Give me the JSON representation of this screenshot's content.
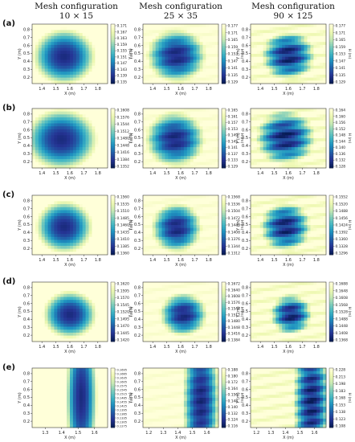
{
  "headers": [
    {
      "title": "Mesh configuration",
      "size": "10 × 15"
    },
    {
      "title": "Mesh configuration",
      "size": "25 × 35"
    },
    {
      "title": "Mesh configuration",
      "size": "90 × 125"
    }
  ],
  "row_labels": [
    "(a)",
    "(b)",
    "(c)",
    "(d)",
    "(e)"
  ],
  "colors": [
    "#081d58",
    "#253494",
    "#225ea8",
    "#1d91c0",
    "#41b6c4",
    "#7fcdbb",
    "#c7e9b4",
    "#edf8b1",
    "#ffffd9"
  ],
  "chart_data": [
    {
      "type": "heatmap",
      "panel": "a-10x15",
      "xlabel": "X (m)",
      "ylabel": "Y (m)",
      "colorbar_label": "H (m)",
      "xticks": [
        "1.4",
        "1.5",
        "1.6",
        "1.7",
        "1.8"
      ],
      "yticks": [
        "0.2",
        "0.3",
        "0.4",
        "0.5",
        "0.6",
        "0.7",
        "0.8"
      ],
      "xlim": [
        1.33,
        1.87
      ],
      "ylim": [
        0.12,
        0.87
      ],
      "cbar_ticks": [
        "0.171",
        "0.167",
        "0.163",
        "0.159",
        "0.155",
        "0.151",
        "0.147",
        "0.143",
        "0.139",
        "0.135"
      ],
      "field": {
        "center": [
          1.56,
          0.46
        ],
        "radius": [
          0.21,
          0.33
        ],
        "bands": 0
      }
    },
    {
      "type": "heatmap",
      "panel": "a-25x35",
      "xlabel": "X (m)",
      "ylabel": "Y (m)",
      "colorbar_label": "H (m)",
      "xticks": [
        "1.4",
        "1.5",
        "1.6",
        "1.7",
        "1.8"
      ],
      "yticks": [
        "0.2",
        "0.3",
        "0.4",
        "0.5",
        "0.6",
        "0.7",
        "0.8"
      ],
      "xlim": [
        1.33,
        1.87
      ],
      "ylim": [
        0.12,
        0.87
      ],
      "cbar_ticks": [
        "0.177",
        "0.171",
        "0.165",
        "0.159",
        "0.153",
        "0.147",
        "0.141",
        "0.135",
        "0.129"
      ],
      "field": {
        "center": [
          1.57,
          0.47
        ],
        "radius": [
          0.2,
          0.32
        ],
        "bands": 0.05
      }
    },
    {
      "type": "heatmap",
      "panel": "a-90x125",
      "xlabel": "X (m)",
      "ylabel": "Y (m)",
      "colorbar_label": "H (m)",
      "xticks": [
        "1.4",
        "1.5",
        "1.6",
        "1.7",
        "1.8"
      ],
      "yticks": [
        "0.2",
        "0.3",
        "0.4",
        "0.5",
        "0.6",
        "0.7",
        "0.8"
      ],
      "xlim": [
        1.33,
        1.87
      ],
      "ylim": [
        0.12,
        0.87
      ],
      "cbar_ticks": [
        "0.177",
        "0.171",
        "0.165",
        "0.159",
        "0.153",
        "0.147",
        "0.141",
        "0.135",
        "0.129"
      ],
      "field": {
        "center": [
          1.6,
          0.47
        ],
        "radius": [
          0.18,
          0.3
        ],
        "bands": 0.12
      }
    },
    {
      "type": "heatmap",
      "panel": "b-10x15",
      "xlabel": "X (m)",
      "ylabel": "Y (m)",
      "colorbar_label": "H (m)",
      "xticks": [
        "1.4",
        "1.5",
        "1.6",
        "1.7",
        "1.8"
      ],
      "yticks": [
        "0.2",
        "0.3",
        "0.4",
        "0.5",
        "0.6",
        "0.7",
        "0.8"
      ],
      "xlim": [
        1.33,
        1.87
      ],
      "ylim": [
        0.12,
        0.87
      ],
      "cbar_ticks": [
        "0.1608",
        "0.1576",
        "0.1544",
        "0.1512",
        "0.1480",
        "0.1448",
        "0.1416",
        "0.1384",
        "0.1352"
      ],
      "field": {
        "center": [
          1.54,
          0.48
        ],
        "radius": [
          0.24,
          0.36
        ],
        "bands": 0
      }
    },
    {
      "type": "heatmap",
      "panel": "b-25x35",
      "xlabel": "X (m)",
      "ylabel": "Y (m)",
      "colorbar_label": "H (m)",
      "xticks": [
        "1.4",
        "1.5",
        "1.6",
        "1.7",
        "1.8"
      ],
      "yticks": [
        "0.2",
        "0.3",
        "0.4",
        "0.5",
        "0.6",
        "0.7",
        "0.8"
      ],
      "xlim": [
        1.33,
        1.87
      ],
      "ylim": [
        0.12,
        0.87
      ],
      "cbar_ticks": [
        "0.165",
        "0.161",
        "0.157",
        "0.153",
        "0.149",
        "0.145",
        "0.141",
        "0.137",
        "0.133",
        "0.129"
      ],
      "field": {
        "center": [
          1.56,
          0.48
        ],
        "radius": [
          0.2,
          0.33
        ],
        "bands": 0.05
      }
    },
    {
      "type": "heatmap",
      "panel": "b-90x125",
      "xlabel": "X (m)",
      "ylabel": "Y (m)",
      "colorbar_label": "H (m)",
      "xticks": [
        "1.4",
        "1.5",
        "1.6",
        "1.7",
        "1.8"
      ],
      "yticks": [
        "0.2",
        "0.3",
        "0.4",
        "0.5",
        "0.6",
        "0.7",
        "0.8"
      ],
      "xlim": [
        1.33,
        1.87
      ],
      "ylim": [
        0.12,
        0.87
      ],
      "cbar_ticks": [
        "0.164",
        "0.160",
        "0.156",
        "0.152",
        "0.148",
        "0.144",
        "0.140",
        "0.136",
        "0.132",
        "0.128"
      ],
      "field": {
        "center": [
          1.58,
          0.5
        ],
        "radius": [
          0.2,
          0.33
        ],
        "bands": 0.12
      }
    },
    {
      "type": "heatmap",
      "panel": "c-10x15",
      "xlabel": "X (m)",
      "ylabel": "Y (m)",
      "colorbar_label": "H (m)",
      "xticks": [
        "1.4",
        "1.5",
        "1.6",
        "1.7",
        "1.8"
      ],
      "yticks": [
        "0.2",
        "0.3",
        "0.4",
        "0.5",
        "0.6",
        "0.7",
        "0.8"
      ],
      "xlim": [
        1.33,
        1.87
      ],
      "ylim": [
        0.12,
        0.87
      ],
      "cbar_ticks": [
        "0.1560",
        "0.1535",
        "0.1510",
        "0.1485",
        "0.1460",
        "0.1435",
        "0.1410",
        "0.1385",
        "0.1360"
      ],
      "field": {
        "center": [
          1.56,
          0.47
        ],
        "radius": [
          0.19,
          0.31
        ],
        "bands": 0
      }
    },
    {
      "type": "heatmap",
      "panel": "c-25x35",
      "xlabel": "X (m)",
      "ylabel": "Y (m)",
      "colorbar_label": "H (m)",
      "xticks": [
        "1.4",
        "1.5",
        "1.6",
        "1.7",
        "1.8"
      ],
      "yticks": [
        "0.2",
        "0.3",
        "0.4",
        "0.5",
        "0.6",
        "0.7",
        "0.8"
      ],
      "xlim": [
        1.33,
        1.87
      ],
      "ylim": [
        0.12,
        0.87
      ],
      "cbar_ticks": [
        "0.1568",
        "0.1536",
        "0.1504",
        "0.1472",
        "0.1440",
        "0.1408",
        "0.1376",
        "0.1344",
        "0.1312"
      ],
      "field": {
        "center": [
          1.57,
          0.46
        ],
        "radius": [
          0.17,
          0.3
        ],
        "bands": 0.05
      }
    },
    {
      "type": "heatmap",
      "panel": "c-90x125",
      "xlabel": "X (m)",
      "ylabel": "Y (m)",
      "colorbar_label": "H (m)",
      "xticks": [
        "1.4",
        "1.5",
        "1.6",
        "1.7",
        "1.8"
      ],
      "yticks": [
        "0.2",
        "0.3",
        "0.4",
        "0.5",
        "0.6",
        "0.7",
        "0.8"
      ],
      "xlim": [
        1.33,
        1.87
      ],
      "ylim": [
        0.12,
        0.87
      ],
      "cbar_ticks": [
        "0.1552",
        "0.1520",
        "0.1488",
        "0.1456",
        "0.1424",
        "0.1392",
        "0.1360",
        "0.1328",
        "0.1296"
      ],
      "field": {
        "center": [
          1.58,
          0.47
        ],
        "radius": [
          0.17,
          0.3
        ],
        "bands": 0.12
      }
    },
    {
      "type": "heatmap",
      "panel": "d-10x15",
      "xlabel": "X (m)",
      "ylabel": "Y (m)",
      "colorbar_label": "H (m)",
      "xticks": [
        "1.4",
        "1.5",
        "1.6",
        "1.7",
        "1.8"
      ],
      "yticks": [
        "0.2",
        "0.3",
        "0.4",
        "0.5",
        "0.6",
        "0.7",
        "0.8"
      ],
      "xlim": [
        1.33,
        1.87
      ],
      "ylim": [
        0.12,
        0.87
      ],
      "cbar_ticks": [
        "0.1620",
        "0.1595",
        "0.1570",
        "0.1545",
        "0.1520",
        "0.1495",
        "0.1470",
        "0.1445",
        "0.1420"
      ],
      "field": {
        "center": [
          1.6,
          0.46
        ],
        "radius": [
          0.18,
          0.28
        ],
        "bands": 0
      }
    },
    {
      "type": "heatmap",
      "panel": "d-25x35",
      "xlabel": "X (m)",
      "ylabel": "Y (m)",
      "colorbar_label": "H (m)",
      "xticks": [
        "1.4",
        "1.5",
        "1.6",
        "1.7",
        "1.8"
      ],
      "yticks": [
        "0.2",
        "0.3",
        "0.4",
        "0.5",
        "0.6",
        "0.7",
        "0.8"
      ],
      "xlim": [
        1.33,
        1.87
      ],
      "ylim": [
        0.12,
        0.87
      ],
      "cbar_ticks": [
        "0.1672",
        "0.1640",
        "0.1608",
        "0.1576",
        "0.1544",
        "0.1512",
        "0.1480",
        "0.1448",
        "0.1416",
        "0.1384"
      ],
      "field": {
        "center": [
          1.62,
          0.46
        ],
        "radius": [
          0.16,
          0.26
        ],
        "bands": 0.05
      }
    },
    {
      "type": "heatmap",
      "panel": "d-90x125",
      "xlabel": "X (m)",
      "ylabel": "Y (m)",
      "colorbar_label": "H (m)",
      "xticks": [
        "1.4",
        "1.5",
        "1.6",
        "1.7",
        "1.8"
      ],
      "yticks": [
        "0.2",
        "0.3",
        "0.4",
        "0.5",
        "0.6",
        "0.7",
        "0.8"
      ],
      "xlim": [
        1.33,
        1.87
      ],
      "ylim": [
        0.12,
        0.87
      ],
      "cbar_ticks": [
        "0.1688",
        "0.1648",
        "0.1608",
        "0.1568",
        "0.1528",
        "0.1488",
        "0.1448",
        "0.1408",
        "0.1368"
      ],
      "field": {
        "center": [
          1.62,
          0.46
        ],
        "radius": [
          0.14,
          0.24
        ],
        "bands": 0.12
      }
    },
    {
      "type": "heatmap",
      "panel": "e-10x15",
      "xlabel": "X (m)",
      "ylabel": "Y (m)",
      "colorbar_label": "H (m)",
      "xticks": [
        "1.3",
        "1.4",
        "1.5",
        "1.6"
      ],
      "yticks": [
        "0.2",
        "0.3",
        "0.4",
        "0.5",
        "0.6",
        "0.7",
        "0.8"
      ],
      "xlim": [
        1.22,
        1.68
      ],
      "ylim": [
        0.12,
        0.87
      ],
      "cbar_ticks": [
        "0.1695",
        "0.1665",
        "0.1635",
        "0.1605",
        "0.1575",
        "0.1545",
        "0.1515",
        "0.1485",
        "0.1455",
        "0.1425",
        "0.1395",
        "0.1365",
        "0.1335",
        "0.1305",
        "0.1275"
      ],
      "field": {
        "center": [
          1.52,
          0.5
        ],
        "radius": [
          0.09,
          0.9
        ],
        "bands": 0
      }
    },
    {
      "type": "heatmap",
      "panel": "e-25x35",
      "xlabel": "X (m)",
      "ylabel": "Y (m)",
      "colorbar_label": "H (m)",
      "xticks": [
        "1.2",
        "1.3",
        "1.4",
        "1.5",
        "1.6"
      ],
      "yticks": [
        "0.2",
        "0.3",
        "0.4",
        "0.5",
        "0.6",
        "0.7",
        "0.8"
      ],
      "xlim": [
        1.16,
        1.68
      ],
      "ylim": [
        0.12,
        0.87
      ],
      "cbar_ticks": [
        "0.188",
        "0.180",
        "0.172",
        "0.164",
        "0.156",
        "0.148",
        "0.140",
        "0.132",
        "0.124",
        "0.116"
      ],
      "field": {
        "center": [
          1.56,
          0.45
        ],
        "radius": [
          0.12,
          0.9
        ],
        "bands": 0.05
      }
    },
    {
      "type": "heatmap",
      "panel": "e-90x125",
      "xlabel": "X (m)",
      "ylabel": "Y (m)",
      "colorbar_label": "H (m)",
      "xticks": [
        "1.2",
        "1.3",
        "1.4",
        "1.5",
        "1.6"
      ],
      "yticks": [
        "0.2",
        "0.3",
        "0.4",
        "0.5",
        "0.6",
        "0.7",
        "0.8"
      ],
      "xlim": [
        1.16,
        1.68
      ],
      "ylim": [
        0.12,
        0.87
      ],
      "cbar_ticks": [
        "0.228",
        "0.213",
        "0.198",
        "0.183",
        "0.168",
        "0.153",
        "0.138",
        "0.123",
        "0.108"
      ],
      "field": {
        "center": [
          1.58,
          0.45
        ],
        "radius": [
          0.12,
          0.9
        ],
        "bands": 0.12
      }
    }
  ]
}
